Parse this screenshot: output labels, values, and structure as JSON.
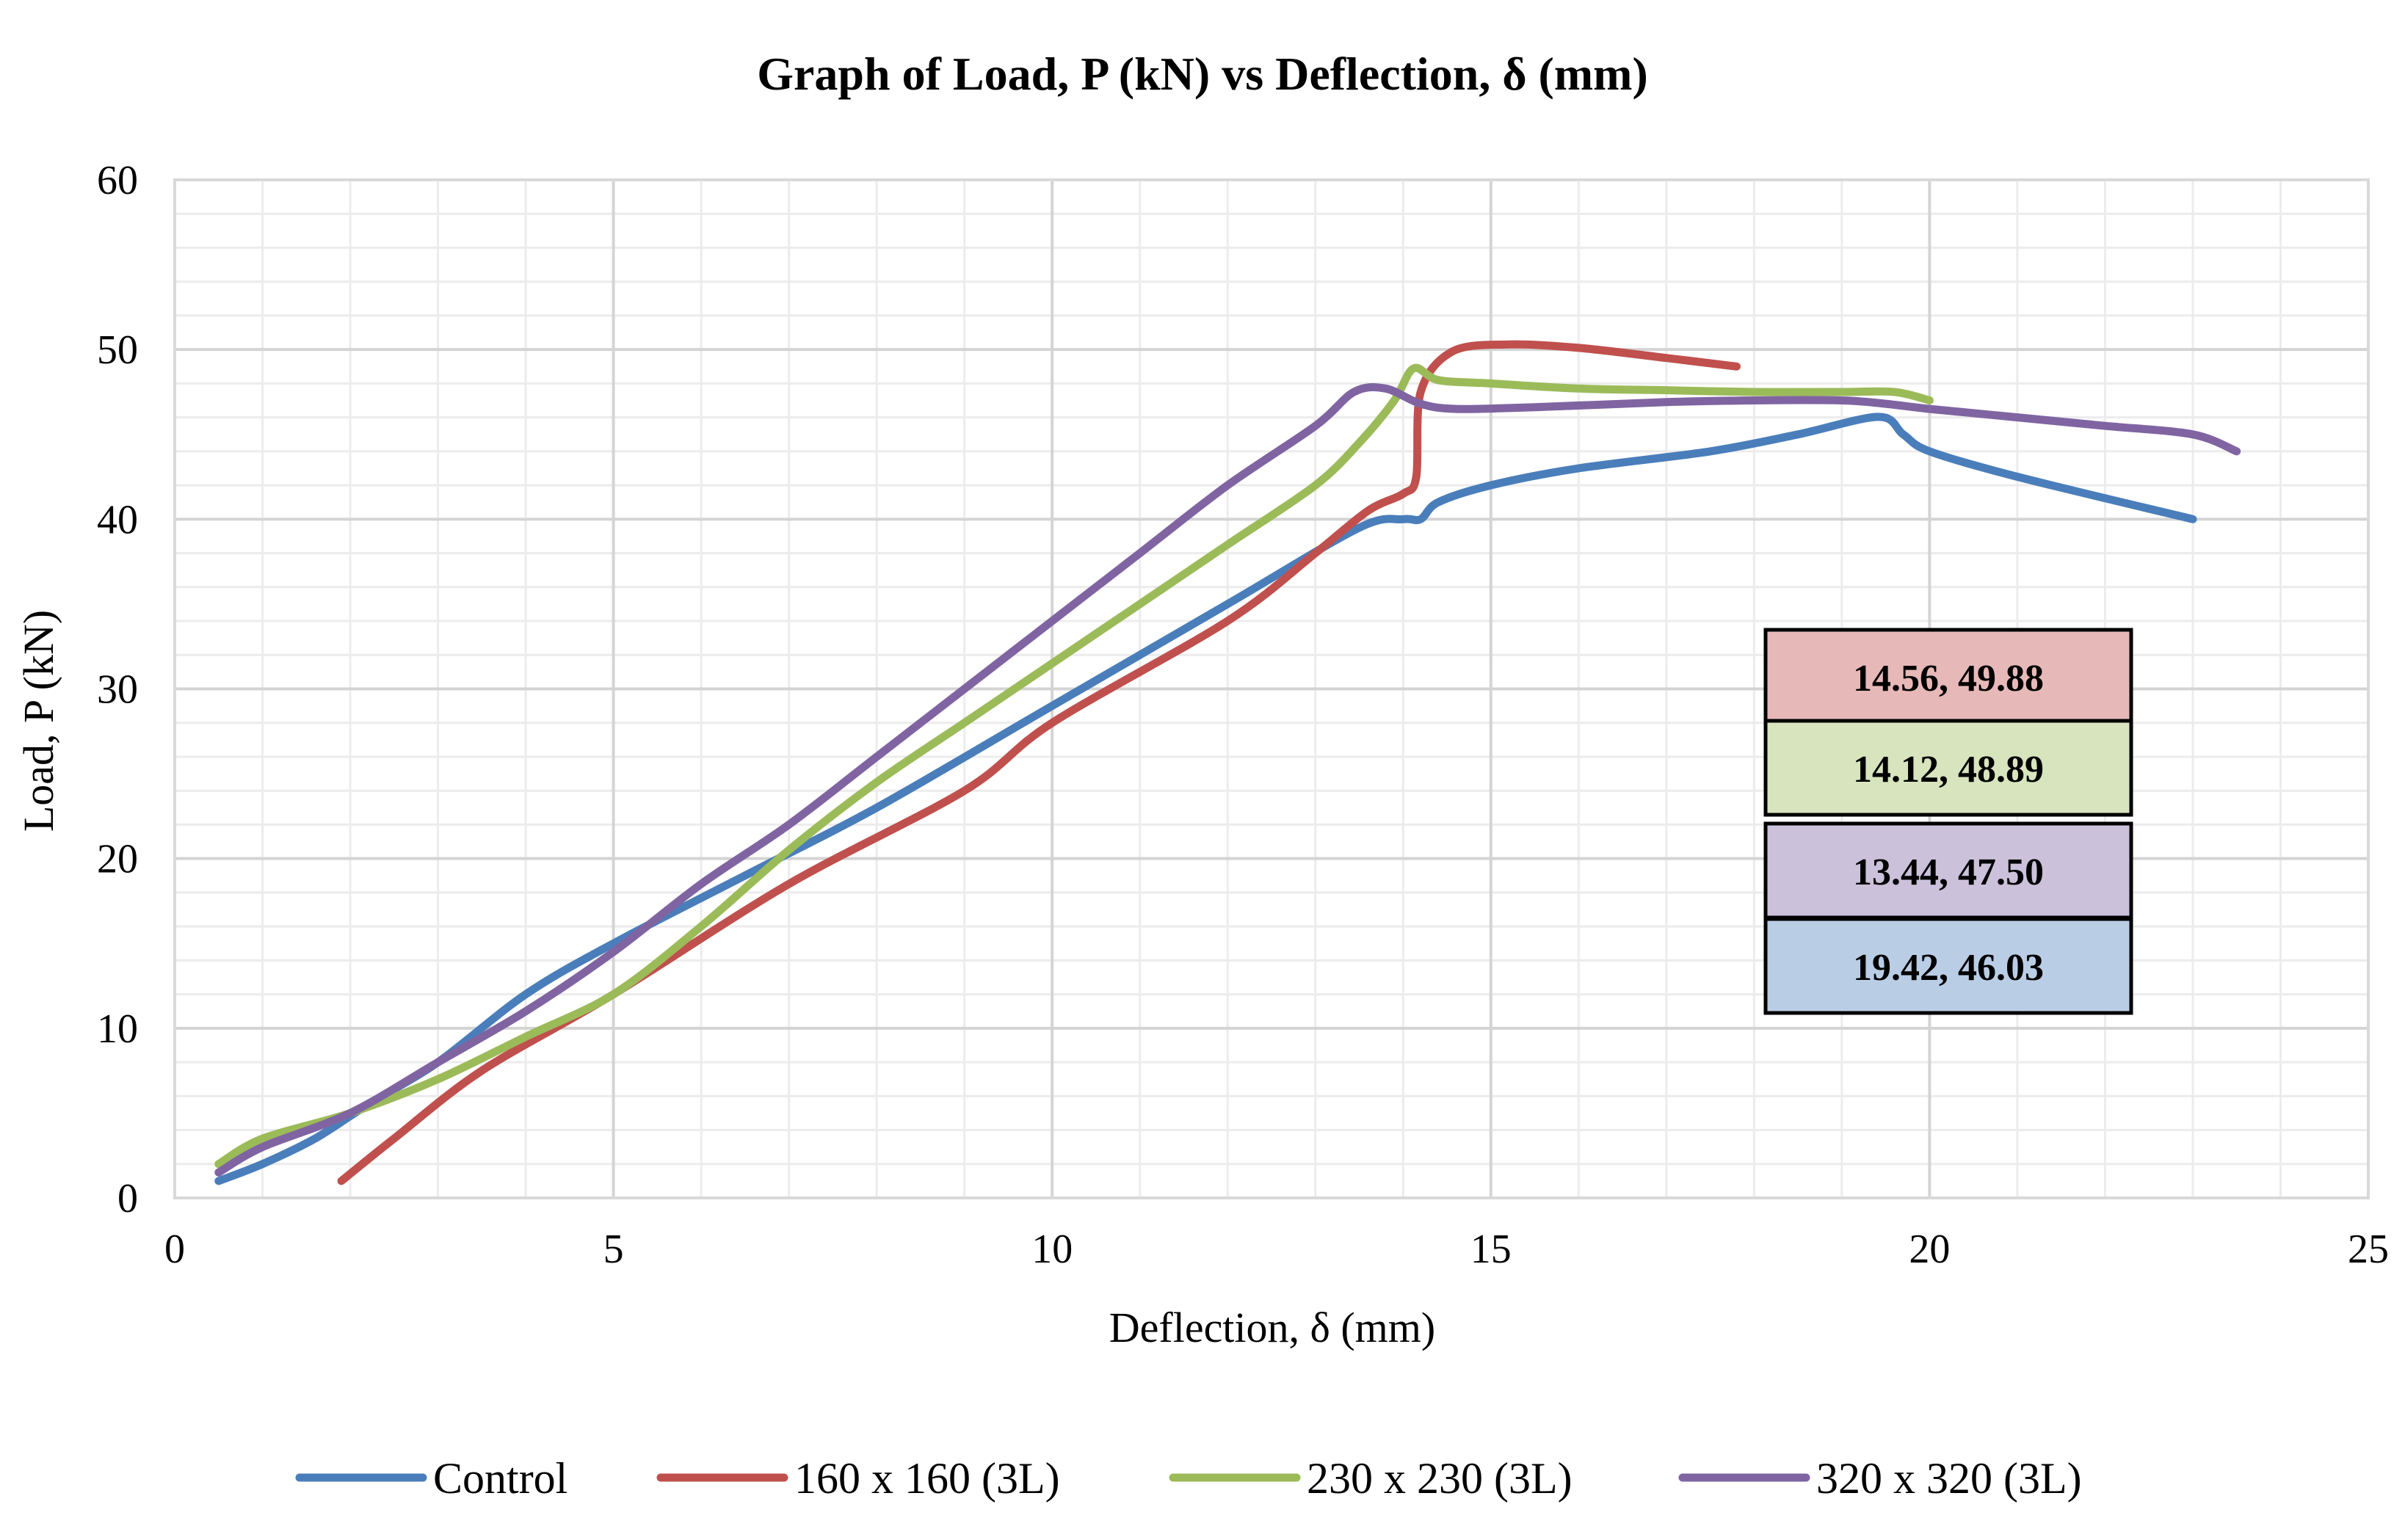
{
  "chart_data": {
    "type": "line",
    "title": "Graph of Load, P (kN) vs Deflection, δ (mm)",
    "xlabel": "Deflection, δ (mm)",
    "ylabel": "Load, P (kN)",
    "xlim": [
      0,
      25
    ],
    "ylim": [
      0,
      60
    ],
    "x_major_ticks": [
      0,
      5,
      10,
      15,
      20,
      25
    ],
    "y_major_ticks": [
      0,
      10,
      20,
      30,
      40,
      50,
      60
    ],
    "x_minor_step": 1,
    "y_minor_step": 2,
    "grid": true,
    "legend_position": "bottom",
    "series": [
      {
        "name": "Control",
        "color": "#4A7EBB",
        "points": [
          [
            0.5,
            1
          ],
          [
            1.0,
            2
          ],
          [
            1.6,
            3.5
          ],
          [
            2.2,
            5.5
          ],
          [
            3.0,
            8
          ],
          [
            4.0,
            12
          ],
          [
            5.0,
            15
          ],
          [
            6.5,
            19
          ],
          [
            8.0,
            23
          ],
          [
            10.0,
            29
          ],
          [
            12.0,
            35
          ],
          [
            13.5,
            39.5
          ],
          [
            14.0,
            40
          ],
          [
            14.2,
            40
          ],
          [
            14.4,
            41
          ],
          [
            15.0,
            42
          ],
          [
            16.0,
            43
          ],
          [
            17.5,
            44
          ],
          [
            18.5,
            45
          ],
          [
            19.42,
            46.03
          ],
          [
            19.7,
            45
          ],
          [
            20.0,
            44
          ],
          [
            21.0,
            42.5
          ],
          [
            23.0,
            40
          ]
        ]
      },
      {
        "name": "160 x 160 (3L)",
        "color": "#C0504D",
        "points": [
          [
            1.9,
            1
          ],
          [
            2.5,
            3.5
          ],
          [
            3.5,
            7.5
          ],
          [
            5.0,
            12
          ],
          [
            7.0,
            18.5
          ],
          [
            9.0,
            24
          ],
          [
            10.0,
            28
          ],
          [
            12.0,
            34
          ],
          [
            13.0,
            38
          ],
          [
            13.6,
            40.5
          ],
          [
            14.0,
            41.5
          ],
          [
            14.15,
            42.5
          ],
          [
            14.2,
            47.5
          ],
          [
            14.56,
            49.88
          ],
          [
            15.2,
            50.3
          ],
          [
            16.0,
            50.1
          ],
          [
            17.0,
            49.5
          ],
          [
            17.8,
            49
          ]
        ]
      },
      {
        "name": "230 x 230 (3L)",
        "color": "#9BBB59",
        "points": [
          [
            0.5,
            2
          ],
          [
            1.0,
            3.5
          ],
          [
            2.0,
            5
          ],
          [
            3.0,
            7
          ],
          [
            4.0,
            9.5
          ],
          [
            5.0,
            12
          ],
          [
            6.0,
            16
          ],
          [
            7.0,
            20.5
          ],
          [
            8.0,
            24.5
          ],
          [
            9.0,
            28
          ],
          [
            10.0,
            31.5
          ],
          [
            11.0,
            35
          ],
          [
            12.0,
            38.5
          ],
          [
            13.0,
            42
          ],
          [
            13.5,
            44.5
          ],
          [
            13.9,
            47
          ],
          [
            14.12,
            48.89
          ],
          [
            14.4,
            48.2
          ],
          [
            15.0,
            48
          ],
          [
            16.0,
            47.7
          ],
          [
            17.0,
            47.6
          ],
          [
            18.0,
            47.5
          ],
          [
            19.0,
            47.5
          ],
          [
            19.6,
            47.5
          ],
          [
            20.0,
            47
          ]
        ]
      },
      {
        "name": "320 x 320 (3L)",
        "color": "#8064A2",
        "points": [
          [
            0.5,
            1.5
          ],
          [
            1.0,
            3
          ],
          [
            2.0,
            5
          ],
          [
            3.0,
            8
          ],
          [
            4.0,
            11
          ],
          [
            5.0,
            14.5
          ],
          [
            6.0,
            18.5
          ],
          [
            7.0,
            22
          ],
          [
            8.0,
            26
          ],
          [
            9.0,
            30
          ],
          [
            10.0,
            34
          ],
          [
            11.0,
            38
          ],
          [
            12.0,
            42
          ],
          [
            13.0,
            45.5
          ],
          [
            13.44,
            47.5
          ],
          [
            13.8,
            47.7
          ],
          [
            14.2,
            46.8
          ],
          [
            14.6,
            46.5
          ],
          [
            15.5,
            46.6
          ],
          [
            17.0,
            46.9
          ],
          [
            18.0,
            47
          ],
          [
            19.0,
            47
          ],
          [
            19.5,
            46.8
          ],
          [
            20.0,
            46.5
          ],
          [
            21.0,
            46
          ],
          [
            22.0,
            45.5
          ],
          [
            23.0,
            45
          ],
          [
            23.5,
            44
          ]
        ]
      }
    ],
    "annotations": [
      {
        "text": "14.56, 49.88",
        "series": "160 x 160 (3L)",
        "fill": "#E6B9B8"
      },
      {
        "text": "14.12, 48.89",
        "series": "230 x 230 (3L)",
        "fill": "#D7E4BD"
      },
      {
        "text": "13.44, 47.50",
        "series": "320 x 320 (3L)",
        "fill": "#CCC1DA"
      },
      {
        "text": "19.42, 46.03",
        "series": "Control",
        "fill": "#B9CDE5"
      }
    ]
  }
}
